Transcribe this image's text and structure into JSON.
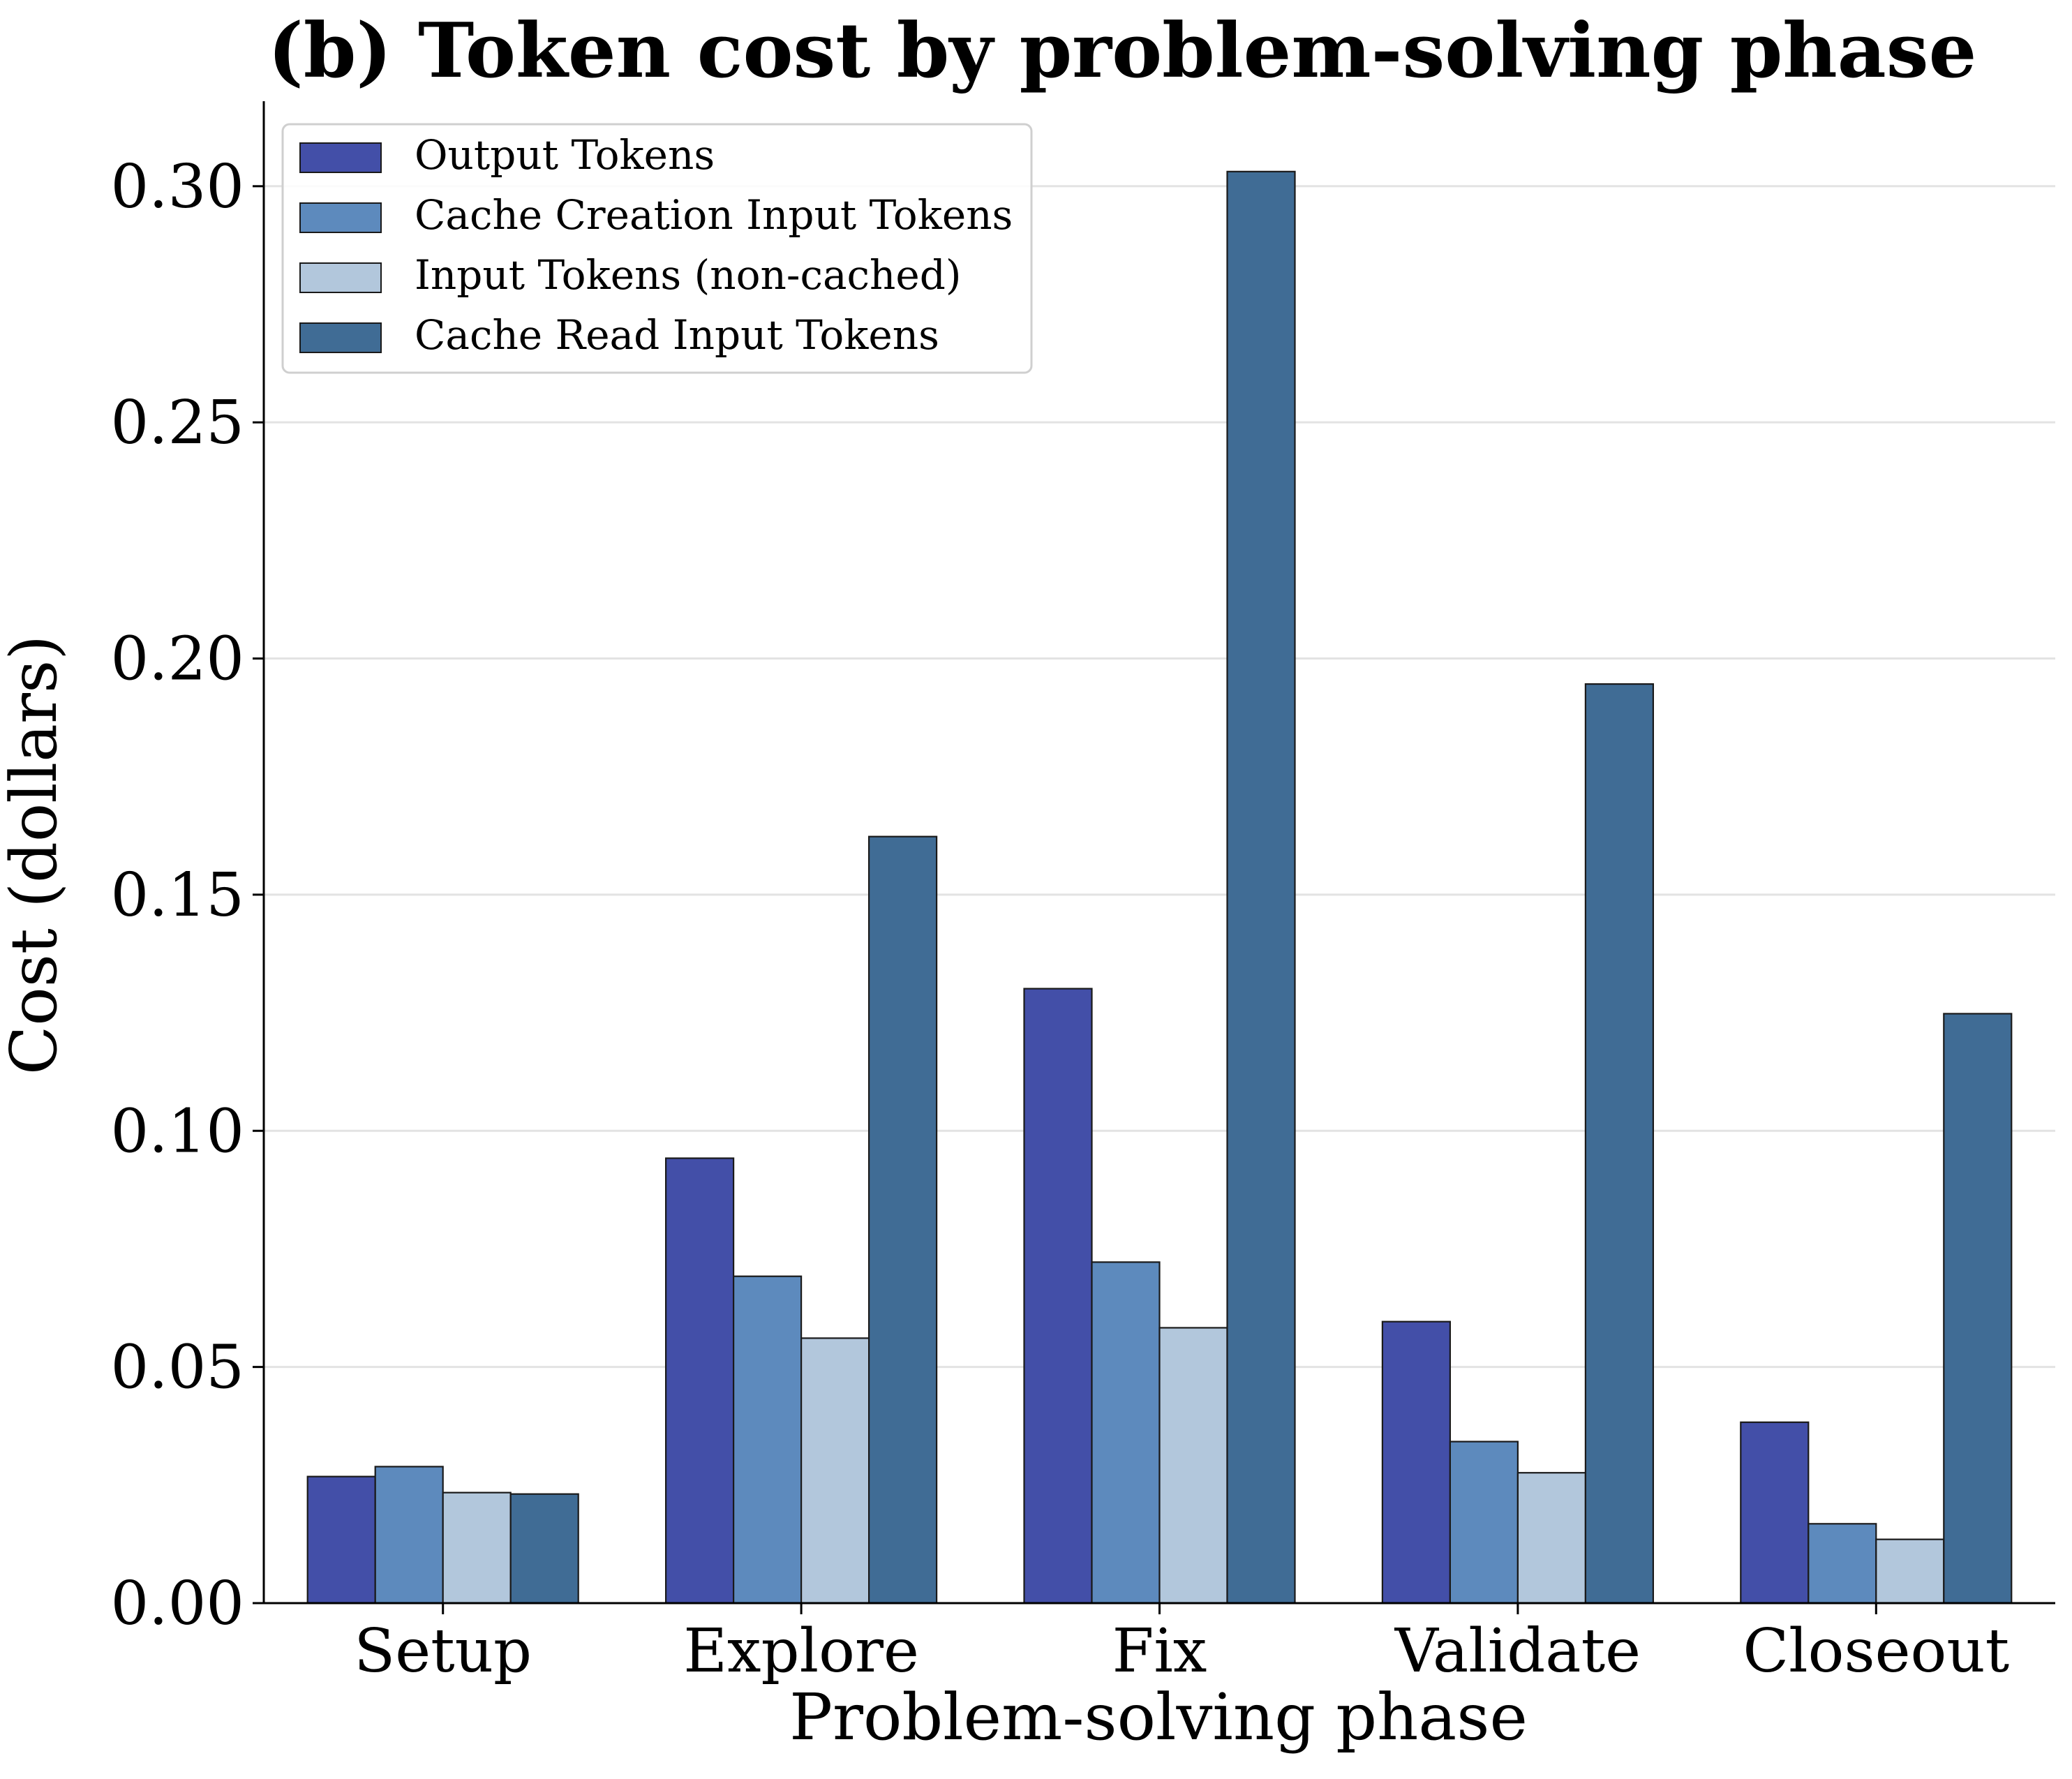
{
  "chart_data": {
    "type": "bar",
    "title": "(b) Token cost by problem-solving phase",
    "xlabel": "Problem-solving phase",
    "ylabel": "Cost (dollars)",
    "ylim": [
      0,
      0.318
    ],
    "yticks": [
      "0.00",
      "0.05",
      "0.10",
      "0.15",
      "0.20",
      "0.25",
      "0.30"
    ],
    "ytick_values": [
      0,
      0.05,
      0.1,
      0.15,
      0.2,
      0.25,
      0.3
    ],
    "grid": "horizontal",
    "legend": "top-left",
    "categories": [
      "Setup",
      "Explore",
      "Fix",
      "Validate",
      "Closeout"
    ],
    "series": [
      {
        "name": "Output Tokens",
        "color": "#434fa8",
        "values": [
          0.0268,
          0.0942,
          0.1301,
          0.0596,
          0.0383
        ]
      },
      {
        "name": "Cache Creation Input Tokens",
        "color": "#5d8abd",
        "values": [
          0.0289,
          0.0692,
          0.0722,
          0.0342,
          0.0168
        ]
      },
      {
        "name": "Input Tokens (non-cached)",
        "color": "#b2c7dc",
        "values": [
          0.0234,
          0.0561,
          0.0583,
          0.0276,
          0.0135
        ]
      },
      {
        "name": "Cache Read Input Tokens",
        "color": "#406c95",
        "values": [
          0.0231,
          0.1623,
          0.3031,
          0.1946,
          0.1248
        ]
      }
    ]
  }
}
